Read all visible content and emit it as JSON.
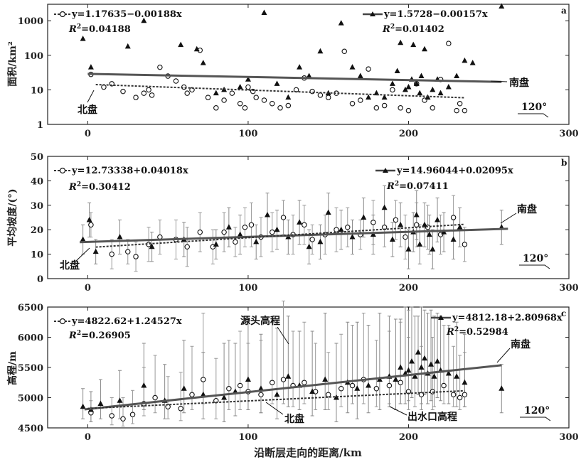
{
  "xlabel": "沿断层走向的距离/km",
  "x_ticks": [
    0,
    100,
    200,
    300
  ],
  "chart_data": [
    {
      "id": "a",
      "type": "scatter",
      "letter": "a",
      "ylabel": "面积/km²",
      "yscale": "log",
      "ylim": [
        1,
        3000
      ],
      "y_ticks": [
        1,
        10,
        100,
        1000
      ],
      "y_tick_labels": [
        "1",
        "10",
        "100",
        "1000"
      ],
      "xlim": [
        -25,
        300
      ],
      "fit_north": {
        "eq": "y=1.17635−0.00188x",
        "r2_label": "R",
        "r2_value": "=0.04188",
        "x0": 5,
        "y0": 14.2,
        "x1": 235,
        "y1": 5.9
      },
      "fit_south": {
        "eq": "y=1.5728−0.00157x",
        "r2_label": "R",
        "r2_value": "=0.01402",
        "x0": 0,
        "y0": 29,
        "x1": 258,
        "y1": 17
      },
      "labels": {
        "south": "南盘",
        "north": "北盘",
        "angle": "120°"
      },
      "series": [
        {
          "name": "北盘",
          "marker": "circle",
          "x": [
            2,
            10,
            15,
            22,
            30,
            35,
            38,
            40,
            45,
            50,
            55,
            60,
            62,
            65,
            70,
            75,
            80,
            85,
            90,
            95,
            98,
            100,
            103,
            105,
            110,
            115,
            120,
            125,
            130,
            135,
            140,
            145,
            150,
            155,
            160,
            165,
            170,
            175,
            180,
            185,
            190,
            195,
            200,
            205,
            210,
            215,
            220,
            225,
            230,
            232,
            235
          ],
          "y": [
            28,
            12,
            15,
            9,
            6,
            8,
            10,
            7,
            45,
            25,
            18,
            12,
            8,
            10,
            140,
            6,
            3,
            5,
            8,
            4,
            3,
            12,
            9,
            6,
            5,
            4,
            3,
            3.5,
            10,
            22,
            9,
            7,
            6,
            8,
            130,
            4,
            5,
            40,
            3,
            3.5,
            10,
            3,
            2.5,
            15,
            5,
            3,
            20,
            220,
            2.5,
            4,
            2.5
          ]
        },
        {
          "name": "南盘",
          "marker": "triangle",
          "x": [
            -3,
            2,
            25,
            35,
            58,
            68,
            72,
            80,
            85,
            95,
            100,
            110,
            118,
            125,
            132,
            138,
            145,
            150,
            158,
            165,
            170,
            175,
            180,
            185,
            190,
            193,
            195,
            198,
            200,
            202,
            203,
            205,
            207,
            208,
            210,
            212,
            215,
            218,
            220,
            225,
            230,
            235,
            240,
            258
          ],
          "y": [
            300,
            45,
            180,
            1000,
            200,
            150,
            60,
            8,
            10,
            12,
            20,
            1700,
            15,
            6,
            45,
            25,
            130,
            8,
            850,
            45,
            25,
            6,
            8,
            6,
            15,
            35,
            230,
            10,
            12,
            20,
            200,
            15,
            8,
            25,
            150,
            6,
            10,
            20,
            8,
            12,
            25,
            70,
            60,
            2600
          ]
        }
      ]
    },
    {
      "id": "b",
      "type": "scatter",
      "letter": "b",
      "ylabel": "平均坡度/(°)",
      "yscale": "linear",
      "ylim": [
        0,
        50
      ],
      "y_ticks": [
        0,
        10,
        20,
        30,
        40,
        50
      ],
      "y_tick_labels": [
        "0",
        "10",
        "20",
        "30",
        "40",
        "50"
      ],
      "xlim": [
        -25,
        300
      ],
      "fit_north": {
        "eq": "y=12.73338+0.04018x",
        "r2_label": "R",
        "r2_value": "=0.30412",
        "x0": 5,
        "y0": 12.9,
        "x1": 235,
        "y1": 22.2
      },
      "fit_south": {
        "eq": "y=14.96044+0.02095x",
        "r2_label": "R",
        "r2_value": "=0.07411",
        "x0": -5,
        "y0": 14.9,
        "x1": 262,
        "y1": 20.4
      },
      "labels": {
        "south": "南盘",
        "north": "北盘",
        "angle": "120°"
      },
      "series": [
        {
          "name": "北盘",
          "marker": "circle",
          "x": [
            2,
            15,
            25,
            30,
            38,
            45,
            55,
            62,
            70,
            78,
            85,
            92,
            98,
            102,
            108,
            115,
            122,
            128,
            135,
            140,
            148,
            155,
            162,
            170,
            178,
            185,
            192,
            198,
            205,
            212,
            220,
            228,
            235
          ],
          "y": [
            22,
            10,
            11,
            9,
            14,
            17,
            16,
            13,
            19,
            13,
            19,
            15,
            21,
            22,
            17,
            19,
            25,
            18,
            22,
            16,
            18,
            20,
            21,
            18,
            23,
            21,
            24,
            17,
            22,
            21,
            18,
            25,
            14
          ],
          "err": [
            5,
            6,
            5,
            6,
            7,
            7,
            8,
            8,
            8,
            7,
            8,
            6,
            8,
            9,
            8,
            8,
            7,
            8,
            8,
            6,
            8,
            9,
            8,
            6,
            9,
            8,
            8,
            9,
            9,
            9,
            8,
            9,
            7
          ]
        },
        {
          "name": "南盘",
          "marker": "triangle",
          "x": [
            -3,
            1,
            5,
            20,
            40,
            60,
            80,
            88,
            95,
            105,
            112,
            118,
            125,
            132,
            138,
            145,
            150,
            158,
            165,
            172,
            178,
            185,
            190,
            195,
            200,
            203,
            205,
            207,
            210,
            213,
            215,
            218,
            222,
            228,
            232,
            258
          ],
          "y": [
            16,
            24,
            11,
            17,
            13,
            16,
            14,
            21,
            18,
            15,
            26,
            20,
            17,
            23,
            13,
            15,
            27,
            20,
            17,
            25,
            18,
            29,
            16,
            22,
            12,
            19,
            26,
            14,
            22,
            18,
            12,
            24,
            19,
            16,
            21,
            21
          ],
          "err": [
            6,
            7,
            5,
            7,
            6,
            7,
            6,
            8,
            8,
            7,
            9,
            8,
            7,
            9,
            7,
            7,
            8,
            8,
            7,
            8,
            8,
            9,
            7,
            9,
            8,
            8,
            10,
            8,
            9,
            8,
            8,
            9,
            8,
            8,
            8,
            7
          ]
        }
      ]
    },
    {
      "id": "c",
      "type": "scatter",
      "letter": "c",
      "ylabel": "高程/m",
      "yscale": "linear",
      "ylim": [
        4500,
        6500
      ],
      "y_ticks": [
        4500,
        5000,
        5500,
        6000,
        6500
      ],
      "y_tick_labels": [
        "4500",
        "5000",
        "5500",
        "6000",
        "6500"
      ],
      "xlim": [
        -25,
        300
      ],
      "fit_north": {
        "eq": "y=4822.62+1.24527x",
        "r2_label": "R",
        "r2_value": "=0.26905",
        "x0": 0,
        "y0": 4822,
        "x1": 235,
        "y1": 5115
      },
      "fit_south": {
        "eq": "y=4812.18+2.80968x",
        "r2_label": "R",
        "r2_value": "=0.52984",
        "x0": -2,
        "y0": 4806,
        "x1": 258,
        "y1": 5537
      },
      "labels": {
        "south": "南盘",
        "north": "北盘",
        "angle": "120°",
        "source": "源头高程",
        "outlet": "出水口高程"
      },
      "series": [
        {
          "name": "北盘",
          "marker": "circle",
          "x": [
            2,
            15,
            22,
            28,
            35,
            42,
            50,
            58,
            65,
            72,
            80,
            88,
            95,
            100,
            108,
            115,
            122,
            128,
            135,
            142,
            150,
            158,
            165,
            172,
            180,
            188,
            195,
            200,
            208,
            215,
            222,
            228,
            232,
            235
          ],
          "y": [
            4750,
            4700,
            4650,
            4720,
            4900,
            5000,
            4850,
            4820,
            5050,
            5300,
            4950,
            5150,
            5200,
            5100,
            5050,
            5250,
            5300,
            5200,
            5250,
            5100,
            5050,
            5150,
            5200,
            5300,
            5150,
            5200,
            5250,
            5100,
            5050,
            5100,
            5200,
            5050,
            5000,
            5050
          ],
          "up": [
            200,
            300,
            350,
            400,
            600,
            700,
            500,
            600,
            800,
            1100,
            700,
            800,
            900,
            800,
            900,
            1000,
            1300,
            900,
            1000,
            800,
            700,
            900,
            1000,
            1100,
            800,
            900,
            1000,
            900,
            800,
            900,
            1000,
            800,
            700,
            700
          ],
          "down": [
            150,
            150,
            120,
            150,
            200,
            250,
            200,
            200,
            250,
            400,
            300,
            350,
            400,
            300,
            300,
            350,
            400,
            350,
            350,
            300,
            250,
            300,
            300,
            400,
            300,
            300,
            350,
            300,
            250,
            300,
            300,
            200,
            200,
            200
          ]
        },
        {
          "name": "南盘",
          "marker": "triangle",
          "x": [
            -3,
            2,
            8,
            20,
            35,
            48,
            60,
            72,
            85,
            92,
            100,
            108,
            118,
            125,
            132,
            140,
            148,
            155,
            162,
            168,
            175,
            182,
            188,
            192,
            195,
            198,
            200,
            202,
            204,
            206,
            208,
            210,
            212,
            214,
            216,
            218,
            220,
            225,
            230,
            235,
            258
          ],
          "y": [
            4850,
            4800,
            4900,
            4950,
            5200,
            4950,
            5150,
            5050,
            5000,
            5100,
            5300,
            5150,
            5050,
            5350,
            5200,
            5100,
            5300,
            5000,
            5250,
            5150,
            5200,
            5300,
            5350,
            5300,
            5500,
            5400,
            5450,
            5600,
            5350,
            5750,
            5500,
            5650,
            5400,
            5550,
            5350,
            5600,
            5450,
            5400,
            5350,
            5250,
            5150
          ],
          "up": [
            300,
            300,
            400,
            500,
            700,
            600,
            800,
            700,
            900,
            800,
            1000,
            900,
            1100,
            1000,
            900,
            1000,
            1100,
            900,
            1000,
            1100,
            1000,
            1100,
            1000,
            1000,
            800,
            1100,
            1000,
            900,
            1000,
            600,
            1000,
            800,
            1000,
            900,
            1000,
            800,
            900,
            800,
            900,
            800,
            400
          ],
          "down": [
            200,
            200,
            250,
            300,
            400,
            300,
            400,
            400,
            400,
            400,
            500,
            400,
            400,
            500,
            400,
            400,
            500,
            400,
            500,
            500,
            450,
            500,
            500,
            500,
            600,
            500,
            500,
            600,
            500,
            700,
            600,
            600,
            500,
            600,
            500,
            600,
            500,
            500,
            500,
            400,
            400
          ]
        }
      ]
    }
  ]
}
